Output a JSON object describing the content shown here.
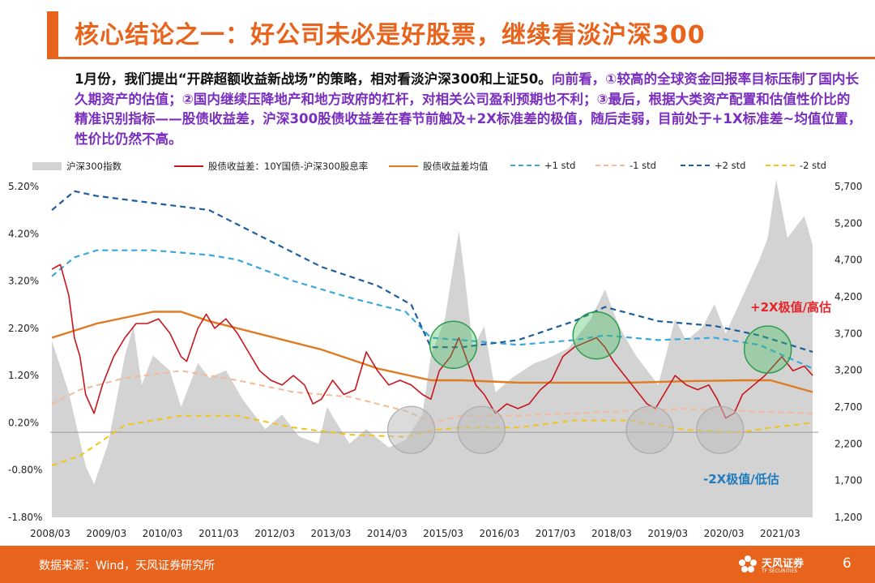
{
  "title": "核心结论之一：好公司未必是好股票，继续看淡沪深300",
  "paragraph": {
    "plain": "1月份，我们提出“开辟超额收益新战场”的策略，相对看淡沪深300和上证50。",
    "highlight": "向前看，①较高的全球资金回报率目标压制了国内长久期资产的估值；②国内继续压降地产和地方政府的杠杆，对相关公司盈利预期也不利；③最后，根据大类资产配置和估值性价比的精准识别指标——股债收益差，沪深300股债收益差在春节前触及+2X标准差的极值，随后走弱，目前处于+1X标准差~均值位置，性价比仍然不高。"
  },
  "footer": {
    "source": "数据来源：Wind，天风证券研究所",
    "logo_text": "天风证券",
    "logo_sub": "TF SECURITIES",
    "page": "6"
  },
  "colors": {
    "accent": "#e8631c",
    "index_area": "#d3d3d3",
    "spread": "#c8161d",
    "mean": "#e07b22",
    "plus1": "#39a9dc",
    "minus1": "#f4b996",
    "plus2": "#1f5e9c",
    "minus2": "#f2c318"
  },
  "chart_data": {
    "type": "line",
    "legend": [
      {
        "key": "index",
        "label": "沪深300指数",
        "style": "area"
      },
      {
        "key": "spread",
        "label": "股债收益差：10Y国债-沪深300股息率",
        "style": "solid"
      },
      {
        "key": "mean",
        "label": "股债收益差均值",
        "style": "solid"
      },
      {
        "key": "plus1",
        "label": "+1 std",
        "style": "dashed"
      },
      {
        "key": "minus1",
        "label": "-1 std",
        "style": "dashed"
      },
      {
        "key": "plus2",
        "label": "+2 std",
        "style": "dashed"
      },
      {
        "key": "minus2",
        "label": "-2 std",
        "style": "dashed"
      }
    ],
    "x_ticks": [
      "2008/03",
      "2009/03",
      "2010/03",
      "2011/03",
      "2012/03",
      "2013/03",
      "2014/03",
      "2015/03",
      "2016/03",
      "2017/03",
      "2018/03",
      "2019/03",
      "2020/03",
      "2021/03"
    ],
    "y_left": {
      "ticks": [
        "5.20%",
        "4.20%",
        "3.20%",
        "2.20%",
        "1.20%",
        "0.20%",
        "-0.80%",
        "-1.80%"
      ],
      "range": [
        -1.8,
        5.2
      ]
    },
    "y_right": {
      "ticks": [
        "5,700",
        "5,200",
        "4,700",
        "4,200",
        "3,700",
        "3,200",
        "2,700",
        "2,200",
        "1,700",
        "1,200"
      ],
      "range": [
        1200,
        5700
      ]
    },
    "series": {
      "index": [
        [
          2008.2,
          3600
        ],
        [
          2008.5,
          2900
        ],
        [
          2008.8,
          1900
        ],
        [
          2008.95,
          1650
        ],
        [
          2009.2,
          2200
        ],
        [
          2009.5,
          3400
        ],
        [
          2009.65,
          3800
        ],
        [
          2009.8,
          3000
        ],
        [
          2010.0,
          3400
        ],
        [
          2010.3,
          3200
        ],
        [
          2010.5,
          2700
        ],
        [
          2010.8,
          3300
        ],
        [
          2011.0,
          3100
        ],
        [
          2011.3,
          3200
        ],
        [
          2011.6,
          2800
        ],
        [
          2012.0,
          2400
        ],
        [
          2012.3,
          2600
        ],
        [
          2012.6,
          2300
        ],
        [
          2012.95,
          2200
        ],
        [
          2013.1,
          2700
        ],
        [
          2013.5,
          2200
        ],
        [
          2013.8,
          2400
        ],
        [
          2014.2,
          2150
        ],
        [
          2014.5,
          2250
        ],
        [
          2014.8,
          2600
        ],
        [
          2014.95,
          3400
        ],
        [
          2015.2,
          3900
        ],
        [
          2015.45,
          5100
        ],
        [
          2015.55,
          4500
        ],
        [
          2015.7,
          3500
        ],
        [
          2015.9,
          3800
        ],
        [
          2016.1,
          2900
        ],
        [
          2016.4,
          3100
        ],
        [
          2016.8,
          3300
        ],
        [
          2017.0,
          3350
        ],
        [
          2017.4,
          3500
        ],
        [
          2017.8,
          3900
        ],
        [
          2018.05,
          4300
        ],
        [
          2018.3,
          3800
        ],
        [
          2018.6,
          3400
        ],
        [
          2018.9,
          3100
        ],
        [
          2019.0,
          3000
        ],
        [
          2019.3,
          3900
        ],
        [
          2019.5,
          3600
        ],
        [
          2019.8,
          3800
        ],
        [
          2020.0,
          4100
        ],
        [
          2020.2,
          3700
        ],
        [
          2020.5,
          4200
        ],
        [
          2020.8,
          4700
        ],
        [
          2020.95,
          5000
        ],
        [
          2021.1,
          5800
        ],
        [
          2021.3,
          5000
        ],
        [
          2021.6,
          5300
        ],
        [
          2021.75,
          4900
        ]
      ],
      "spread": [
        [
          2008.2,
          3.45
        ],
        [
          2008.35,
          3.55
        ],
        [
          2008.5,
          2.9
        ],
        [
          2008.6,
          2.0
        ],
        [
          2008.7,
          1.6
        ],
        [
          2008.8,
          0.8
        ],
        [
          2008.95,
          0.4
        ],
        [
          2009.1,
          1.0
        ],
        [
          2009.3,
          1.6
        ],
        [
          2009.5,
          2.0
        ],
        [
          2009.7,
          2.3
        ],
        [
          2009.9,
          2.3
        ],
        [
          2010.1,
          2.4
        ],
        [
          2010.3,
          2.1
        ],
        [
          2010.5,
          1.6
        ],
        [
          2010.6,
          1.5
        ],
        [
          2010.8,
          2.2
        ],
        [
          2010.95,
          2.5
        ],
        [
          2011.1,
          2.2
        ],
        [
          2011.3,
          2.4
        ],
        [
          2011.5,
          2.1
        ],
        [
          2011.7,
          1.7
        ],
        [
          2011.9,
          1.3
        ],
        [
          2012.1,
          1.1
        ],
        [
          2012.3,
          1.0
        ],
        [
          2012.5,
          1.2
        ],
        [
          2012.7,
          1.0
        ],
        [
          2012.85,
          0.6
        ],
        [
          2013.0,
          0.7
        ],
        [
          2013.2,
          1.1
        ],
        [
          2013.4,
          0.8
        ],
        [
          2013.6,
          0.9
        ],
        [
          2013.8,
          1.7
        ],
        [
          2014.0,
          1.3
        ],
        [
          2014.2,
          1.0
        ],
        [
          2014.4,
          1.1
        ],
        [
          2014.6,
          1.0
        ],
        [
          2014.8,
          0.8
        ],
        [
          2014.95,
          0.7
        ],
        [
          2015.1,
          1.3
        ],
        [
          2015.3,
          1.6
        ],
        [
          2015.45,
          2.0
        ],
        [
          2015.6,
          1.5
        ],
        [
          2015.75,
          1.0
        ],
        [
          2015.9,
          0.8
        ],
        [
          2016.1,
          0.4
        ],
        [
          2016.3,
          0.6
        ],
        [
          2016.5,
          0.5
        ],
        [
          2016.7,
          0.6
        ],
        [
          2016.9,
          0.9
        ],
        [
          2017.1,
          1.1
        ],
        [
          2017.3,
          1.6
        ],
        [
          2017.5,
          1.8
        ],
        [
          2017.7,
          1.9
        ],
        [
          2017.9,
          2.0
        ],
        [
          2018.05,
          1.8
        ],
        [
          2018.2,
          1.5
        ],
        [
          2018.4,
          1.2
        ],
        [
          2018.6,
          0.9
        ],
        [
          2018.8,
          0.6
        ],
        [
          2018.95,
          0.5
        ],
        [
          2019.1,
          0.8
        ],
        [
          2019.3,
          1.2
        ],
        [
          2019.5,
          1.0
        ],
        [
          2019.7,
          0.9
        ],
        [
          2019.9,
          1.0
        ],
        [
          2020.05,
          0.7
        ],
        [
          2020.2,
          0.3
        ],
        [
          2020.35,
          0.4
        ],
        [
          2020.5,
          0.8
        ],
        [
          2020.7,
          1.0
        ],
        [
          2020.9,
          1.2
        ],
        [
          2021.05,
          1.4
        ],
        [
          2021.2,
          1.6
        ],
        [
          2021.4,
          1.3
        ],
        [
          2021.6,
          1.4
        ],
        [
          2021.75,
          1.2
        ]
      ],
      "mean": [
        [
          2008.2,
          2.0
        ],
        [
          2009.0,
          2.3
        ],
        [
          2010.0,
          2.55
        ],
        [
          2010.5,
          2.55
        ],
        [
          2011.0,
          2.35
        ],
        [
          2012.0,
          2.05
        ],
        [
          2013.0,
          1.75
        ],
        [
          2014.0,
          1.35
        ],
        [
          2014.95,
          1.1
        ],
        [
          2015.5,
          1.1
        ],
        [
          2016.5,
          1.05
        ],
        [
          2017.5,
          1.05
        ],
        [
          2018.5,
          1.05
        ],
        [
          2019.5,
          1.08
        ],
        [
          2020.5,
          1.1
        ],
        [
          2021.0,
          1.1
        ],
        [
          2021.75,
          0.85
        ]
      ],
      "plus1": [
        [
          2008.2,
          3.3
        ],
        [
          2008.6,
          3.7
        ],
        [
          2009.0,
          3.85
        ],
        [
          2010.0,
          3.85
        ],
        [
          2011.0,
          3.75
        ],
        [
          2011.5,
          3.65
        ],
        [
          2012.5,
          3.2
        ],
        [
          2013.5,
          2.85
        ],
        [
          2014.5,
          2.55
        ],
        [
          2014.95,
          2.0
        ],
        [
          2015.5,
          1.95
        ],
        [
          2016.5,
          1.85
        ],
        [
          2017.5,
          1.95
        ],
        [
          2018.05,
          2.05
        ],
        [
          2019.0,
          1.95
        ],
        [
          2020.0,
          2.0
        ],
        [
          2020.8,
          1.85
        ],
        [
          2021.75,
          1.35
        ]
      ],
      "minus1": [
        [
          2008.2,
          0.6
        ],
        [
          2008.7,
          0.9
        ],
        [
          2009.5,
          1.15
        ],
        [
          2010.5,
          1.3
        ],
        [
          2011.5,
          1.1
        ],
        [
          2012.5,
          0.85
        ],
        [
          2013.5,
          0.75
        ],
        [
          2014.5,
          0.45
        ],
        [
          2015.0,
          0.2
        ],
        [
          2015.5,
          0.35
        ],
        [
          2016.5,
          0.35
        ],
        [
          2017.5,
          0.4
        ],
        [
          2018.5,
          0.45
        ],
        [
          2019.5,
          0.5
        ],
        [
          2020.5,
          0.45
        ],
        [
          2021.75,
          0.4
        ]
      ],
      "plus2": [
        [
          2008.2,
          4.7
        ],
        [
          2008.6,
          5.1
        ],
        [
          2009.0,
          5.0
        ],
        [
          2010.0,
          4.85
        ],
        [
          2011.0,
          4.7
        ],
        [
          2012.0,
          4.1
        ],
        [
          2013.0,
          3.5
        ],
        [
          2014.0,
          3.1
        ],
        [
          2014.6,
          2.7
        ],
        [
          2014.95,
          1.8
        ],
        [
          2015.5,
          1.8
        ],
        [
          2016.5,
          1.95
        ],
        [
          2017.5,
          2.35
        ],
        [
          2018.05,
          2.65
        ],
        [
          2019.0,
          2.35
        ],
        [
          2020.0,
          2.25
        ],
        [
          2020.8,
          2.05
        ],
        [
          2021.75,
          1.7
        ]
      ],
      "minus2": [
        [
          2008.2,
          -0.7
        ],
        [
          2008.7,
          -0.5
        ],
        [
          2009.5,
          0.15
        ],
        [
          2010.5,
          0.35
        ],
        [
          2011.5,
          0.35
        ],
        [
          2012.5,
          0.1
        ],
        [
          2013.5,
          -0.05
        ],
        [
          2014.5,
          -0.1
        ],
        [
          2015.0,
          0.05
        ],
        [
          2015.5,
          0.1
        ],
        [
          2016.5,
          0.1
        ],
        [
          2017.5,
          0.25
        ],
        [
          2018.5,
          0.25
        ],
        [
          2019.5,
          0.05
        ],
        [
          2020.5,
          0.0
        ],
        [
          2021.0,
          0.1
        ],
        [
          2021.75,
          0.2
        ]
      ]
    },
    "annotations": [
      {
        "text": "+2X极值/高估",
        "color": "#e8242a"
      },
      {
        "text": "-2X极值/低估",
        "color": "#1e7bbf"
      }
    ],
    "highlight_circles": {
      "high": [
        [
          2015.35,
          1.85
        ],
        [
          2017.9,
          2.05
        ],
        [
          2020.95,
          1.75
        ]
      ],
      "low": [
        [
          2014.6,
          0.05
        ],
        [
          2015.85,
          0.05
        ],
        [
          2018.85,
          0.05
        ],
        [
          2020.1,
          0.05
        ]
      ]
    },
    "grid": false,
    "legend_position": "top"
  }
}
